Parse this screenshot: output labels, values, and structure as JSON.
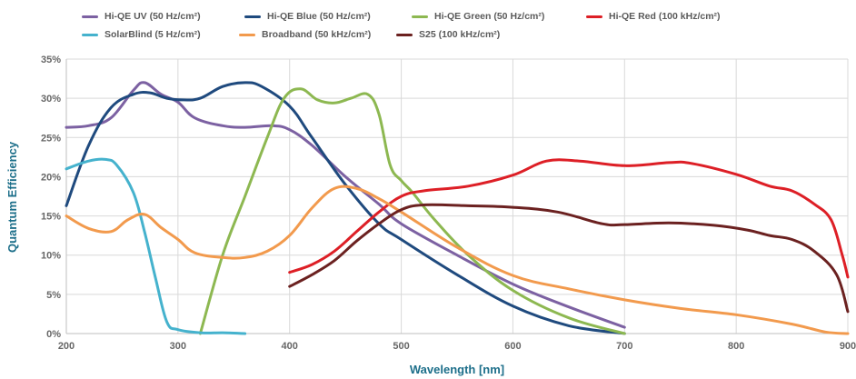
{
  "chart_data": {
    "type": "line",
    "xlabel": "Wavelength [nm]",
    "ylabel": "Quantum Efficiency",
    "xlim": [
      200,
      900
    ],
    "ylim": [
      0,
      35
    ],
    "x_ticks": [
      "200",
      "300",
      "400",
      "500",
      "600",
      "700",
      "800",
      "900"
    ],
    "y_ticks": [
      "0%",
      "5%",
      "10%",
      "15%",
      "20%",
      "25%",
      "30%",
      "35%"
    ],
    "grid": true,
    "legend_position": "top",
    "series": [
      {
        "name": "Hi-QE UV (50 Hz/cm²)",
        "color": "#7c61a2",
        "points": [
          [
            200,
            26.3
          ],
          [
            220,
            26.5
          ],
          [
            240,
            27.5
          ],
          [
            260,
            31
          ],
          [
            270,
            32
          ],
          [
            285,
            30.5
          ],
          [
            300,
            29.5
          ],
          [
            315,
            27.5
          ],
          [
            340,
            26.5
          ],
          [
            360,
            26.3
          ],
          [
            385,
            26.5
          ],
          [
            400,
            26
          ],
          [
            420,
            24
          ],
          [
            450,
            20
          ],
          [
            480,
            16.5
          ],
          [
            500,
            14
          ],
          [
            550,
            10
          ],
          [
            600,
            6.3
          ],
          [
            650,
            3.4
          ],
          [
            700,
            0.8
          ]
        ]
      },
      {
        "name": "Hi-QE Blue (50 Hz/cm²)",
        "color": "#1f4a7e",
        "points": [
          [
            200,
            16.3
          ],
          [
            220,
            24
          ],
          [
            240,
            28.8
          ],
          [
            260,
            30.5
          ],
          [
            275,
            30.7
          ],
          [
            290,
            30
          ],
          [
            305,
            29.8
          ],
          [
            320,
            30
          ],
          [
            340,
            31.5
          ],
          [
            360,
            32
          ],
          [
            375,
            31.5
          ],
          [
            400,
            29
          ],
          [
            420,
            25
          ],
          [
            450,
            19
          ],
          [
            480,
            14
          ],
          [
            500,
            12
          ],
          [
            550,
            7.5
          ],
          [
            600,
            3.5
          ],
          [
            650,
            1
          ],
          [
            700,
            0
          ]
        ]
      },
      {
        "name": "Hi-QE Green (50 Hz/cm²)",
        "color": "#8db851",
        "points": [
          [
            320,
            0
          ],
          [
            340,
            10
          ],
          [
            360,
            17.5
          ],
          [
            380,
            25
          ],
          [
            395,
            30
          ],
          [
            410,
            31.2
          ],
          [
            425,
            29.8
          ],
          [
            440,
            29.4
          ],
          [
            455,
            30
          ],
          [
            470,
            30.5
          ],
          [
            480,
            28
          ],
          [
            490,
            21.5
          ],
          [
            500,
            19.5
          ],
          [
            510,
            18
          ],
          [
            530,
            14.5
          ],
          [
            560,
            10
          ],
          [
            600,
            5.5
          ],
          [
            650,
            2
          ],
          [
            700,
            0
          ]
        ]
      },
      {
        "name": "Hi-QE Red (100 kHz/cm²)",
        "color": "#dd1f26",
        "points": [
          [
            400,
            7.8
          ],
          [
            420,
            8.8
          ],
          [
            440,
            10.5
          ],
          [
            460,
            13
          ],
          [
            480,
            15.5
          ],
          [
            500,
            17.5
          ],
          [
            520,
            18.2
          ],
          [
            560,
            18.8
          ],
          [
            600,
            20.2
          ],
          [
            630,
            22
          ],
          [
            660,
            22
          ],
          [
            700,
            21.4
          ],
          [
            740,
            21.8
          ],
          [
            760,
            21.7
          ],
          [
            800,
            20.3
          ],
          [
            830,
            18.8
          ],
          [
            850,
            18.2
          ],
          [
            870,
            16.5
          ],
          [
            885,
            14.5
          ],
          [
            895,
            10
          ],
          [
            900,
            7.2
          ]
        ]
      },
      {
        "name": "SolarBlind (5 Hz/cm²)",
        "color": "#45b2cd",
        "points": [
          [
            200,
            21
          ],
          [
            220,
            22
          ],
          [
            235,
            22.2
          ],
          [
            245,
            21.5
          ],
          [
            260,
            18
          ],
          [
            270,
            13
          ],
          [
            280,
            7
          ],
          [
            290,
            1.5
          ],
          [
            300,
            0.5
          ],
          [
            320,
            0.1
          ],
          [
            340,
            0.1
          ],
          [
            360,
            0
          ]
        ]
      },
      {
        "name": "Broadband (50 kHz/cm²)",
        "color": "#f29a4d",
        "points": [
          [
            200,
            15
          ],
          [
            220,
            13.4
          ],
          [
            240,
            13
          ],
          [
            255,
            14.5
          ],
          [
            270,
            15.2
          ],
          [
            285,
            13.5
          ],
          [
            300,
            12
          ],
          [
            315,
            10.3
          ],
          [
            340,
            9.7
          ],
          [
            360,
            9.7
          ],
          [
            380,
            10.5
          ],
          [
            400,
            12.5
          ],
          [
            420,
            16
          ],
          [
            440,
            18.5
          ],
          [
            460,
            18.5
          ],
          [
            480,
            17.2
          ],
          [
            500,
            15.5
          ],
          [
            550,
            11
          ],
          [
            600,
            7.4
          ],
          [
            650,
            5.7
          ],
          [
            700,
            4.3
          ],
          [
            750,
            3.2
          ],
          [
            800,
            2.4
          ],
          [
            850,
            1.2
          ],
          [
            880,
            0.2
          ],
          [
            900,
            0
          ]
        ]
      },
      {
        "name": "S25 (100 kHz/cm²)",
        "color": "#6b2120",
        "points": [
          [
            400,
            6
          ],
          [
            420,
            7.5
          ],
          [
            440,
            9.3
          ],
          [
            460,
            11.8
          ],
          [
            480,
            14
          ],
          [
            500,
            15.8
          ],
          [
            520,
            16.4
          ],
          [
            560,
            16.3
          ],
          [
            600,
            16.1
          ],
          [
            640,
            15.5
          ],
          [
            680,
            14
          ],
          [
            700,
            13.9
          ],
          [
            740,
            14.1
          ],
          [
            780,
            13.8
          ],
          [
            810,
            13.2
          ],
          [
            830,
            12.5
          ],
          [
            850,
            12
          ],
          [
            870,
            10.5
          ],
          [
            890,
            7.5
          ],
          [
            900,
            2.8
          ]
        ]
      }
    ]
  }
}
